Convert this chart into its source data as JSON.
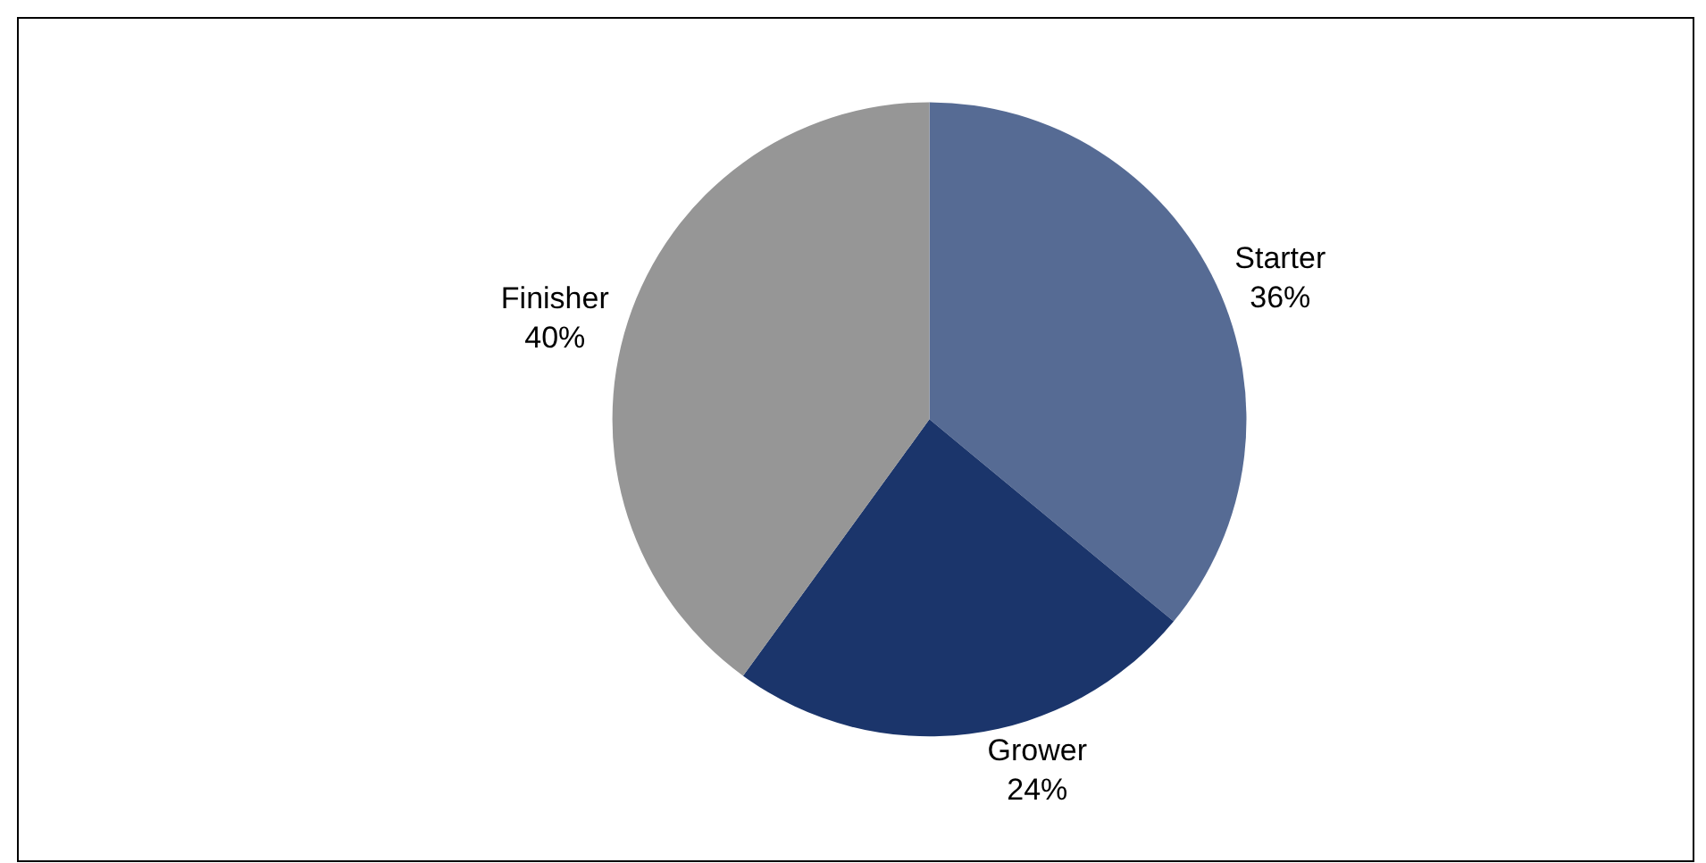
{
  "chart_data": {
    "type": "pie",
    "categories": [
      "Starter",
      "Grower",
      "Finisher"
    ],
    "values": [
      36,
      24,
      40
    ],
    "value_labels": [
      "36%",
      "24%",
      "40%"
    ],
    "colors": [
      "#566b94",
      "#1b356b",
      "#969696"
    ],
    "legend": false
  }
}
